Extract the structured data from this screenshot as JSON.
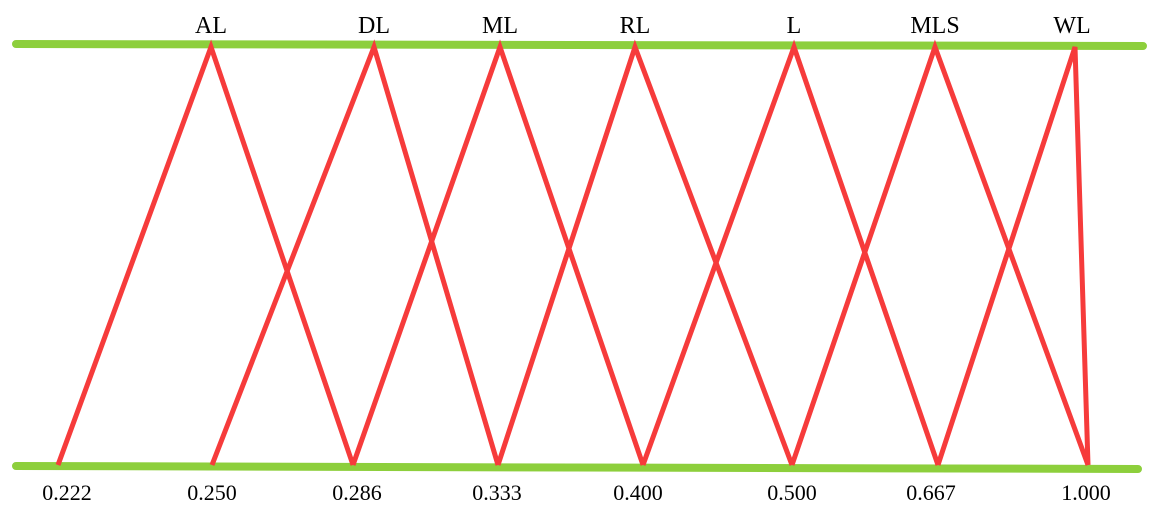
{
  "diagram": {
    "type": "triangular-membership-functions",
    "terms": [
      "AL",
      "DL",
      "ML",
      "RL",
      "L",
      "MLS",
      "WL"
    ],
    "ticks": [
      "0.222",
      "0.250",
      "0.286",
      "0.333",
      "0.400",
      "0.500",
      "0.667",
      "1.000"
    ],
    "membership_functions": [
      {
        "term": "AL",
        "points": [
          "0.222",
          "0.250",
          "0.286"
        ]
      },
      {
        "term": "DL",
        "points": [
          "0.250",
          "0.286",
          "0.333"
        ]
      },
      {
        "term": "ML",
        "points": [
          "0.286",
          "0.333",
          "0.400"
        ]
      },
      {
        "term": "RL",
        "points": [
          "0.333",
          "0.400",
          "0.500"
        ]
      },
      {
        "term": "L",
        "points": [
          "0.400",
          "0.500",
          "0.667"
        ]
      },
      {
        "term": "MLS",
        "points": [
          "0.500",
          "0.667",
          "1.000"
        ]
      },
      {
        "term": "WL",
        "points": [
          "0.667",
          "1.000",
          "1.000"
        ]
      }
    ],
    "colors": {
      "axis_lines": "#8dcf3c",
      "triangles": "#f63b3b",
      "text": "#000000"
    }
  }
}
